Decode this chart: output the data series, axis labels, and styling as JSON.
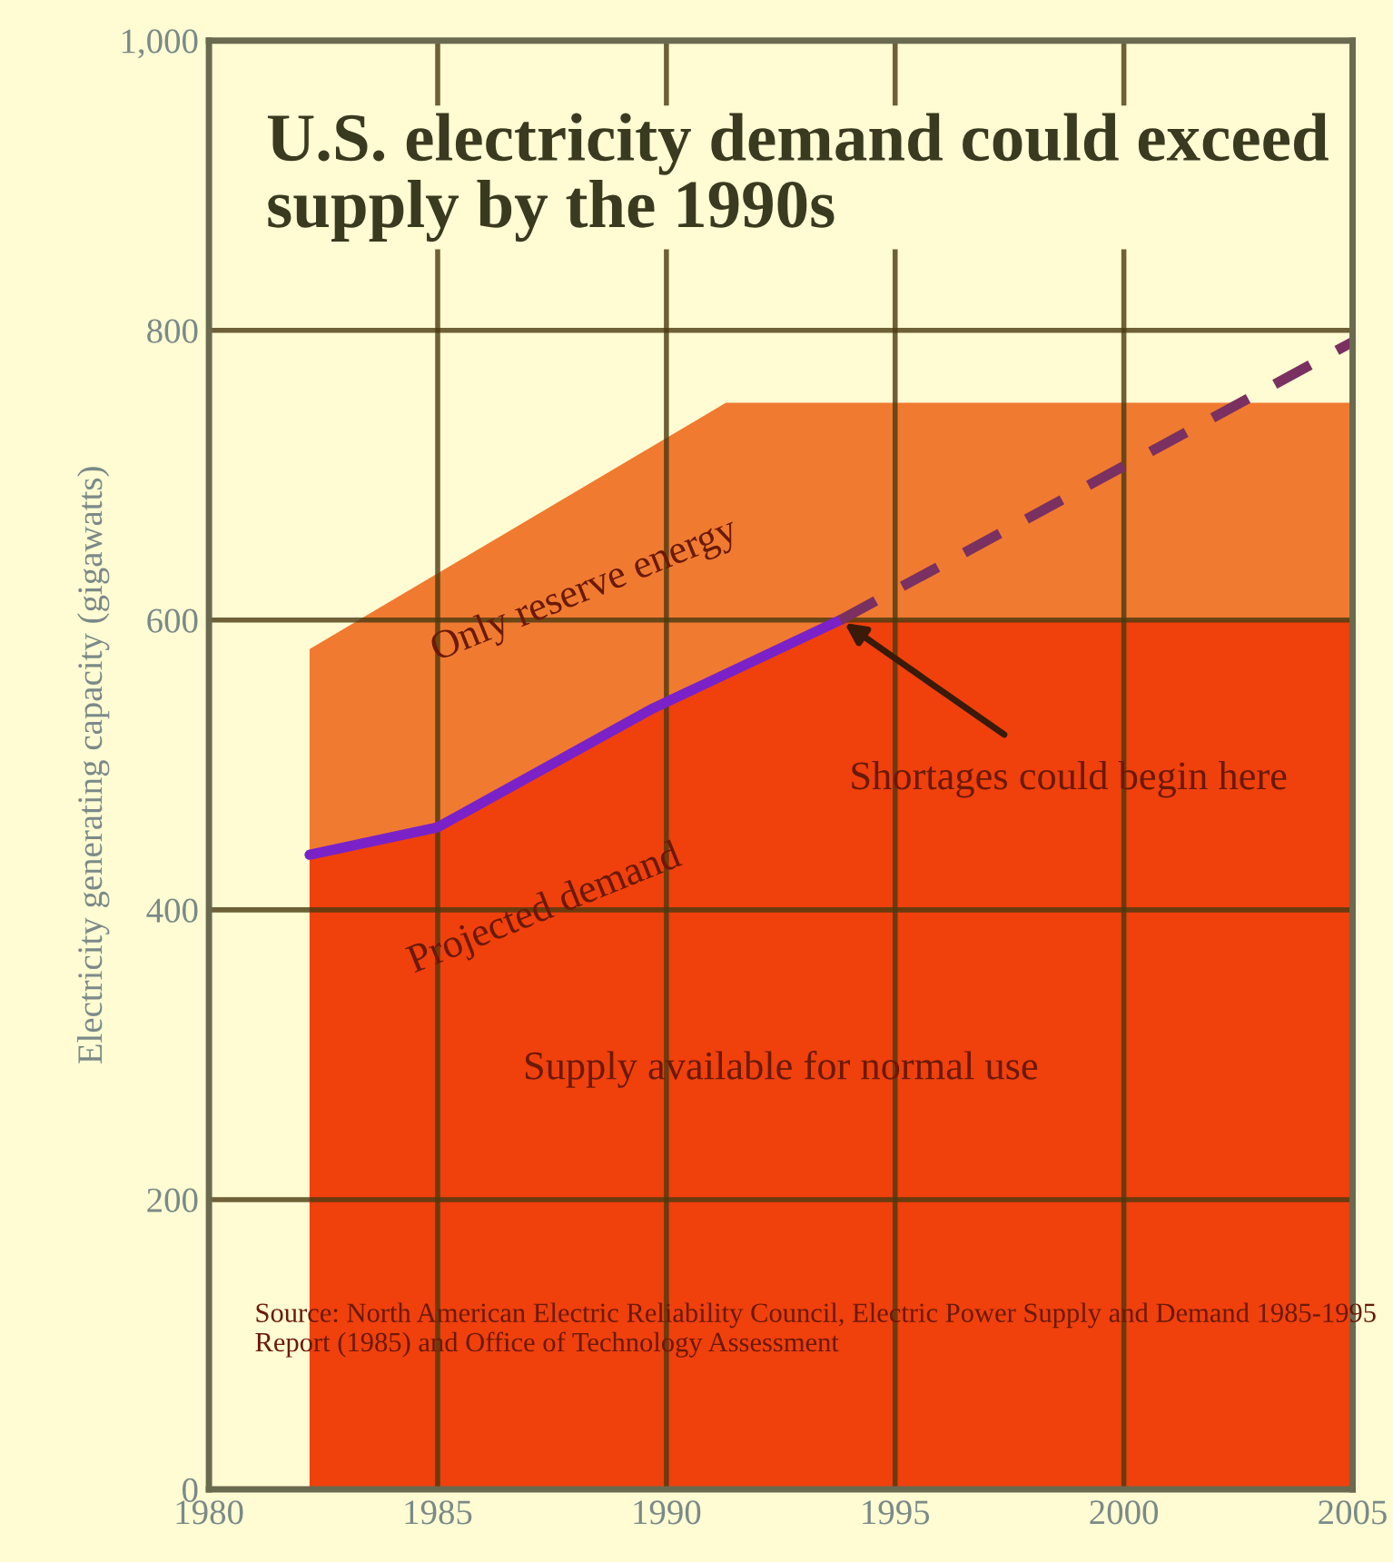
{
  "chart_data": {
    "type": "area",
    "title": "U.S. electricity demand could exceed supply by the 1990s",
    "ylabel": "Electricity generating capacity (gigawatts)",
    "series": [
      {
        "color": "#f07a30",
        "x": [
          1982.2,
          1991.3,
          2005
        ],
        "values": [
          580,
          750,
          750
        ]
      },
      {
        "color": "#f0400c",
        "x": [
          1982.2,
          1985,
          1989.7,
          1993.8,
          2005
        ],
        "values": [
          438,
          457,
          539,
          600,
          600
        ]
      },
      {
        "type": "line",
        "color": "#7a22c8",
        "line_style": "solid",
        "x": [
          1982.2,
          1985,
          1989.7,
          1993.8
        ],
        "values": [
          438,
          457,
          539,
          600
        ]
      },
      {
        "type": "line",
        "color": "#7a3060",
        "line_style": "dashed",
        "x": [
          1993.8,
          2005
        ],
        "values": [
          600,
          792
        ]
      }
    ],
    "xlim": [
      1980,
      2005
    ],
    "xticks": [
      1980,
      1985,
      1990,
      1995,
      2000,
      2005
    ],
    "ylim": [
      0,
      1000
    ],
    "yticks": [
      0,
      200,
      400,
      600,
      800,
      {
        "value": 1000,
        "label": "1,000"
      }
    ],
    "grid": true,
    "legend": false,
    "annotations": [
      "Only reserve energy",
      "Projected demand",
      {
        "text": "Shortages could begin here",
        "x": 1993.8,
        "y": 600
      },
      "Supply available for normal use",
      "Source: North American Electric Reliability Council, Electric Power Supply and Demand 1985-1995 Report (1985) and Office of Technology Assessment"
    ]
  }
}
